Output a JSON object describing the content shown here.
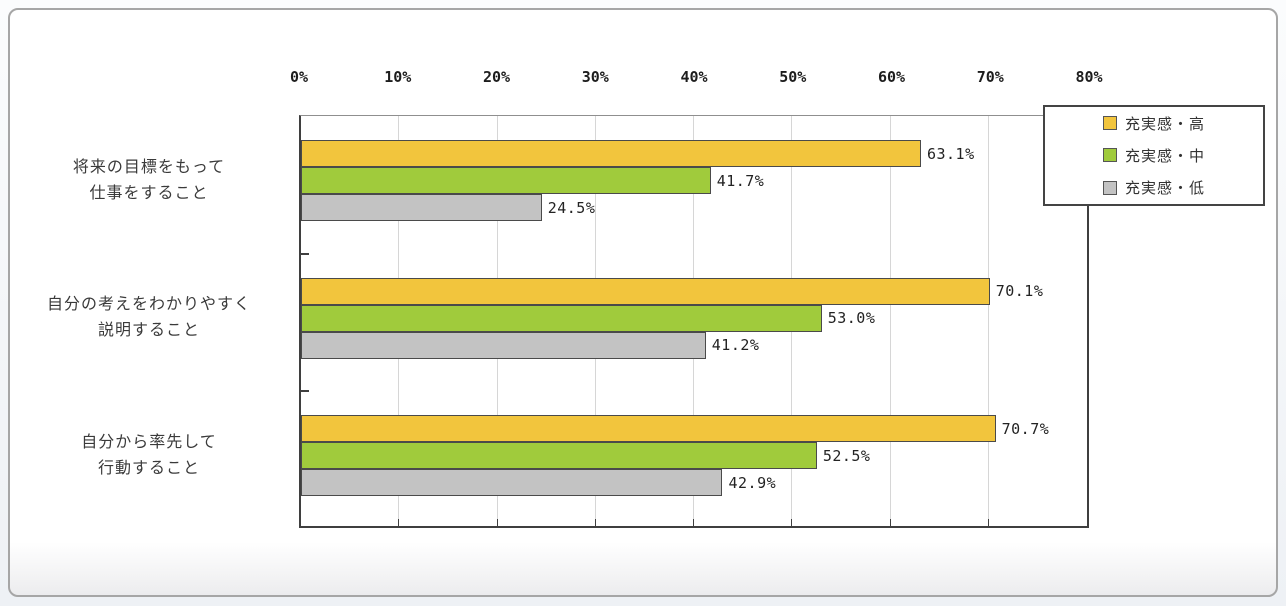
{
  "chart_data": {
    "type": "bar",
    "orientation": "horizontal",
    "title": "",
    "categories": [
      [
        "将来の目標をもって",
        "仕事をすること"
      ],
      [
        "自分の考えをわかりやすく",
        "説明すること"
      ],
      [
        "自分から率先して",
        "行動すること"
      ]
    ],
    "series": [
      {
        "name": "充実感・高",
        "color": "#F2C53D",
        "values": [
          63.1,
          70.1,
          70.7
        ],
        "labels": [
          "63.1%",
          "70.1%",
          "70.7%"
        ]
      },
      {
        "name": "充実感・中",
        "color": "#A0CB3C",
        "values": [
          41.7,
          53.0,
          52.5
        ],
        "labels": [
          "41.7%",
          "53.0%",
          "52.5%"
        ]
      },
      {
        "name": "充実感・低",
        "color": "#C3C3C3",
        "values": [
          24.5,
          41.2,
          42.9
        ],
        "labels": [
          "24.5%",
          "41.2%",
          "42.9%"
        ]
      }
    ],
    "x_axis": {
      "position": "top",
      "min": 0,
      "max": 80,
      "ticks": [
        "0%",
        "10%",
        "20%",
        "30%",
        "40%",
        "50%",
        "60%",
        "70%",
        "80%"
      ]
    },
    "grid": true,
    "legend_position": "top-right",
    "colors": {
      "bar_border": "#4a4a4a",
      "gridline": "#d6d6d6",
      "plot_border": "#3f3f3f",
      "card_border": "#a6a6a6",
      "background": "#ffffff"
    }
  }
}
